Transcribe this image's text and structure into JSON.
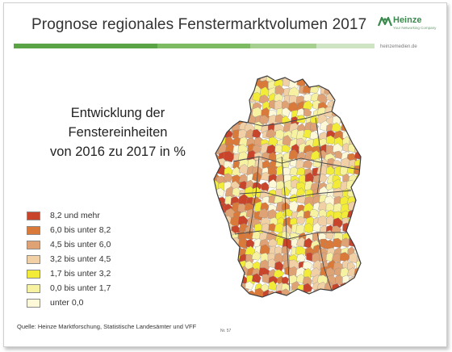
{
  "header": {
    "title": "Prognose regionales Fenstermarktvolumen 2017",
    "bar_colors": [
      "#5aa446",
      "#7dbb63",
      "#a6d08f",
      "#cfe4c2"
    ]
  },
  "brand": {
    "name": "Heinze",
    "tagline": "Your Networking Company",
    "website": "heinzemedien.de",
    "color": "#3a8a4e"
  },
  "subtitle": {
    "line1": "Entwicklung der Fenstereinheiten",
    "line2": "von 2016 zu 2017 in %"
  },
  "legend": {
    "items": [
      {
        "label": "8,2 und mehr",
        "color": "#c8452b"
      },
      {
        "label": "6,0 bis unter 8,2",
        "color": "#d97a3a"
      },
      {
        "label": "4,5 bis unter 6,0",
        "color": "#dfa275"
      },
      {
        "label": "3,2 bis unter 4,5",
        "color": "#f1d0a6"
      },
      {
        "label": "1,7 bis unter 3,2",
        "color": "#f2ec38"
      },
      {
        "label": "0,0 bis unter 1,7",
        "color": "#f7f2a2"
      },
      {
        "label": "unter  0,0",
        "color": "#fcf8d8"
      }
    ]
  },
  "map": {
    "region": "Deutschland",
    "border_color": "#555555"
  },
  "footer": {
    "source": "Quelle: Heinze Marktforschung, Statistische Landesämter und VFF",
    "page_number": "Nr. 57"
  }
}
